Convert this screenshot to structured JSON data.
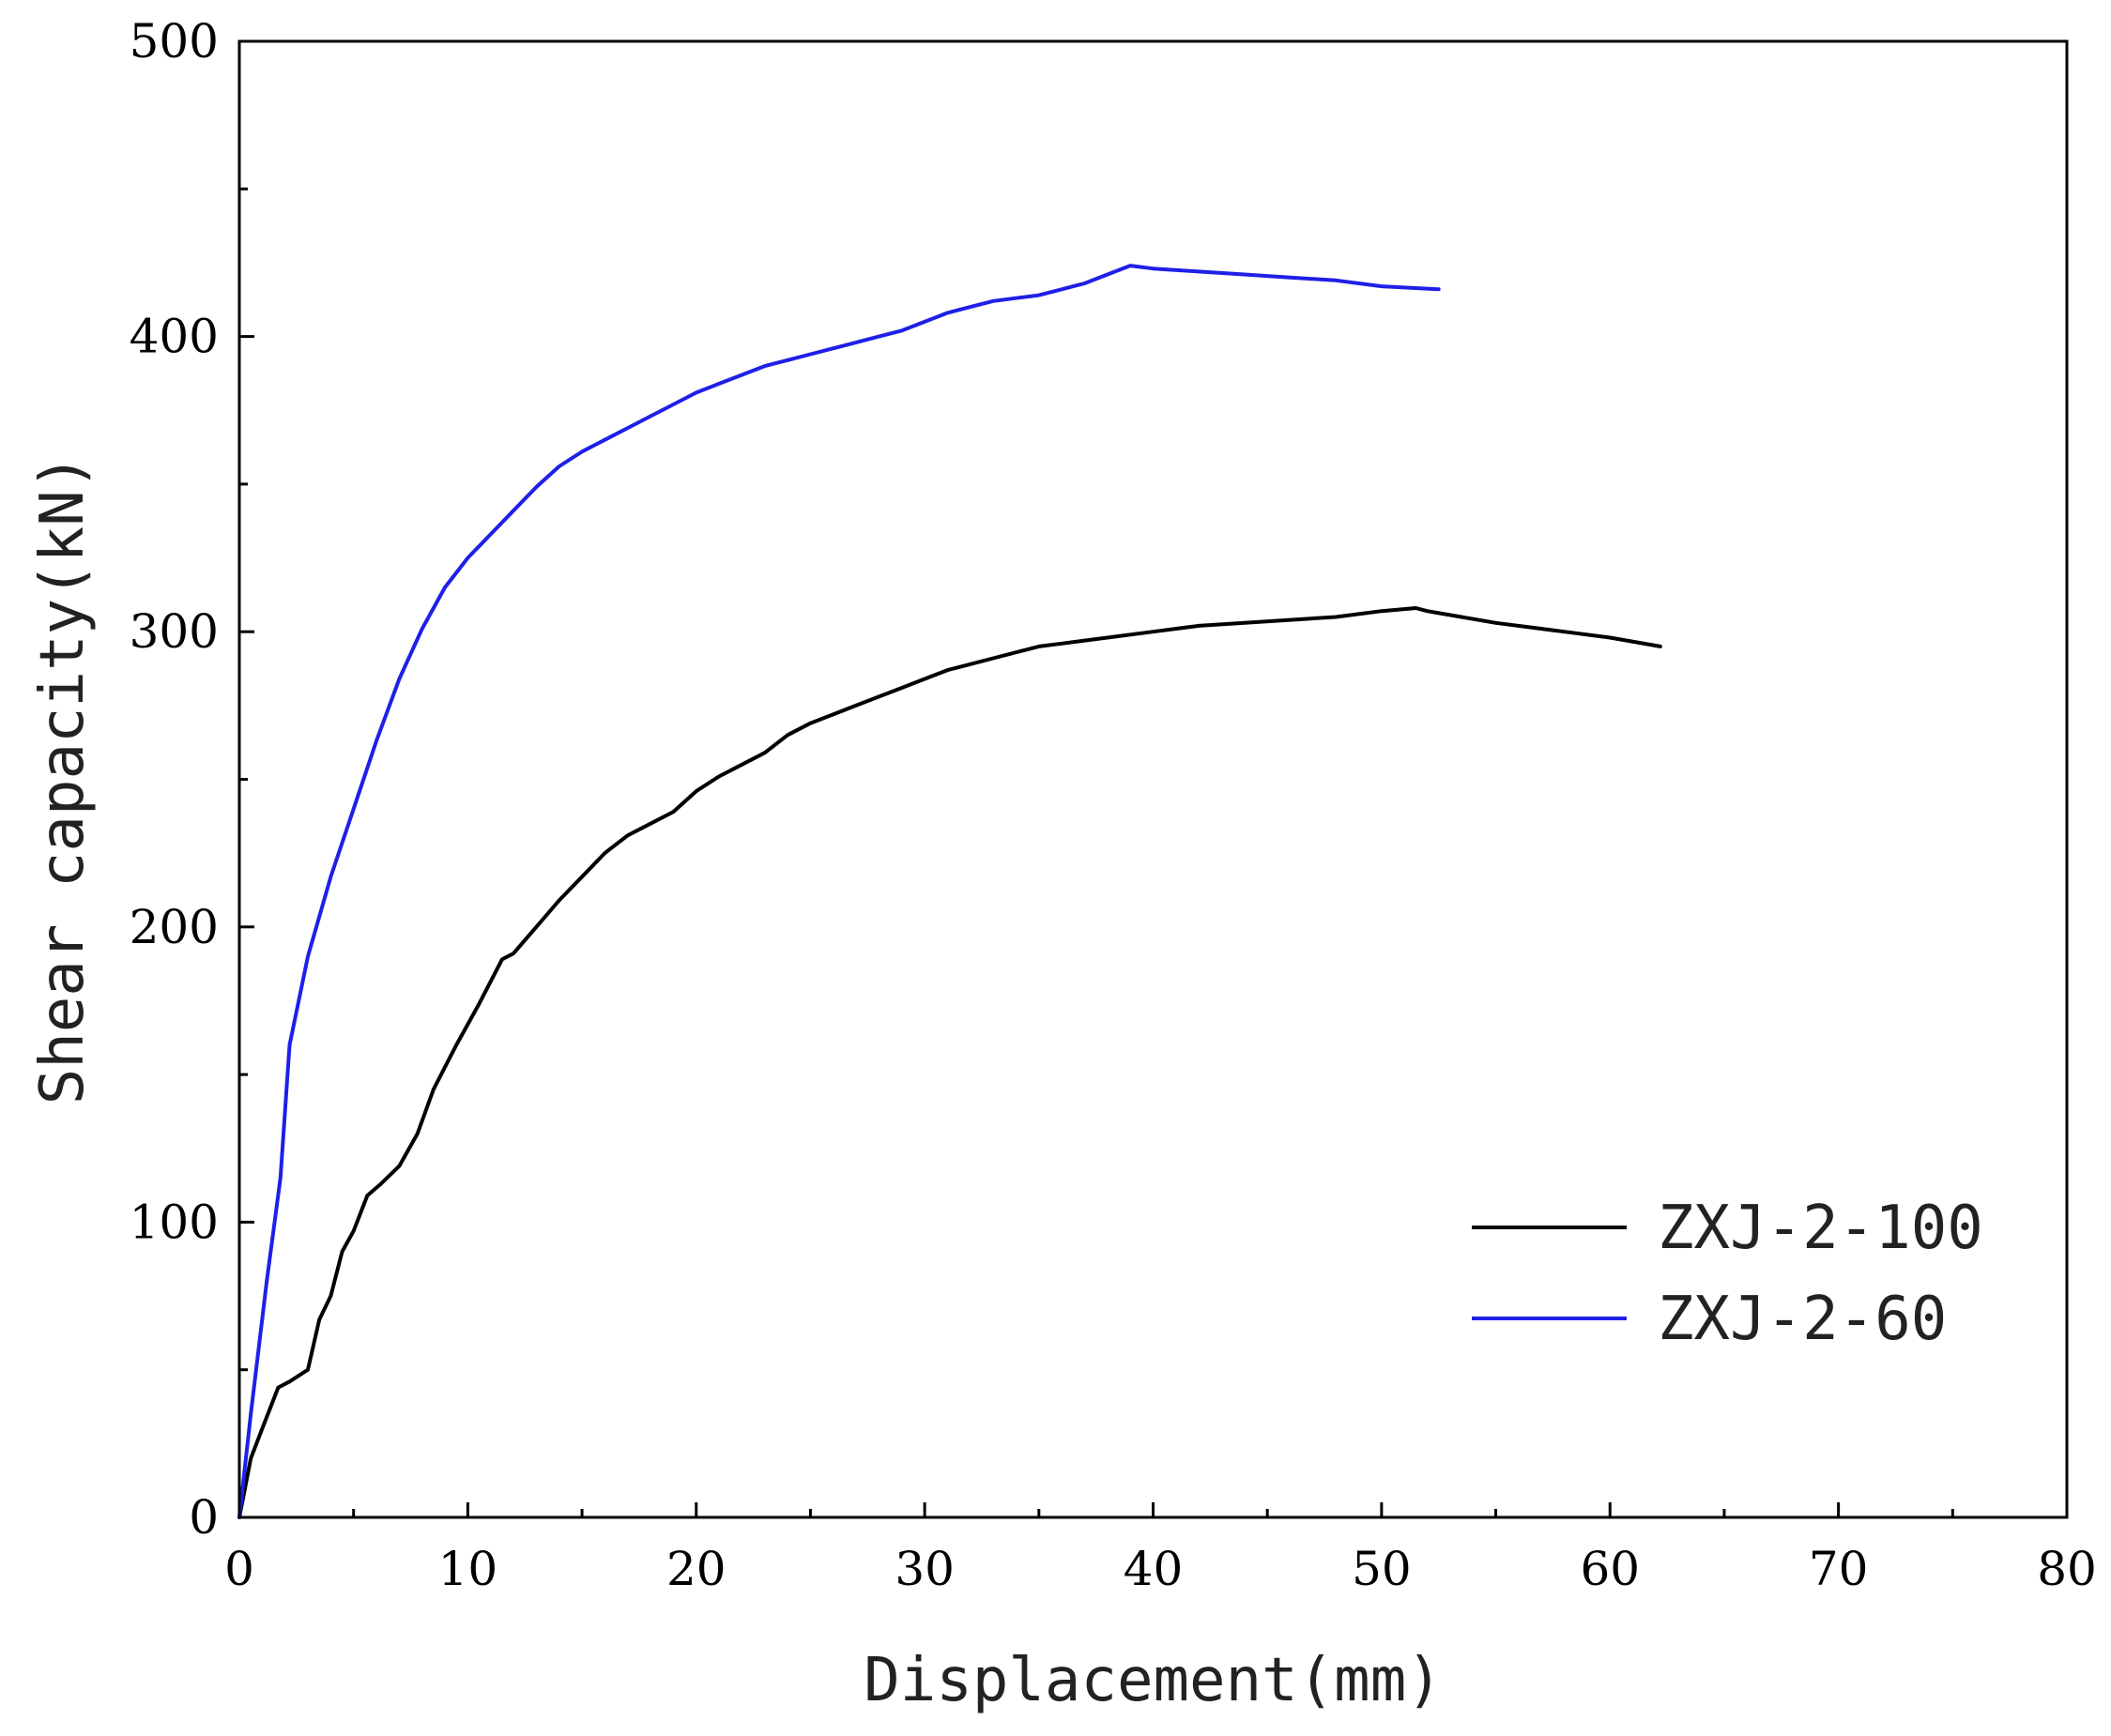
{
  "chart_data": {
    "type": "line",
    "title": "",
    "xlabel": "Displacement(mm)",
    "ylabel": "Shear capacity(kN)",
    "xlim": [
      0,
      80
    ],
    "ylim": [
      0,
      500
    ],
    "x_major_ticks": [
      0,
      10,
      20,
      30,
      40,
      50,
      60,
      70,
      80
    ],
    "x_tick_labels": [
      "0",
      "10",
      "20",
      "30",
      "40",
      "50",
      "60",
      "70",
      "80"
    ],
    "x_minor_ticks": [
      5,
      15,
      25,
      35,
      45,
      55,
      65,
      75
    ],
    "y_major_ticks": [
      0,
      100,
      200,
      300,
      400,
      500
    ],
    "y_tick_labels": [
      "0",
      "100",
      "200",
      "300",
      "400",
      "500"
    ],
    "y_minor_ticks": [
      50,
      150,
      250,
      350,
      450
    ],
    "grid": false,
    "legend_position": "bottom-right",
    "series": [
      {
        "name": "ZXJ-2-100",
        "color": "#000000",
        "points": [
          [
            0,
            0
          ],
          [
            0.5,
            20
          ],
          [
            1,
            30
          ],
          [
            1.7,
            44
          ],
          [
            2.2,
            46
          ],
          [
            3,
            50
          ],
          [
            3.5,
            67
          ],
          [
            4,
            75
          ],
          [
            4.5,
            90
          ],
          [
            5,
            97
          ],
          [
            5.6,
            109
          ],
          [
            6.2,
            113
          ],
          [
            7,
            119
          ],
          [
            7.8,
            130
          ],
          [
            8.5,
            145
          ],
          [
            9.5,
            160
          ],
          [
            10.5,
            174
          ],
          [
            11.5,
            189
          ],
          [
            12,
            191
          ],
          [
            13,
            200
          ],
          [
            14,
            209
          ],
          [
            15,
            217
          ],
          [
            16,
            225
          ],
          [
            17,
            231
          ],
          [
            18,
            235
          ],
          [
            19,
            239
          ],
          [
            20,
            246
          ],
          [
            21,
            251
          ],
          [
            22,
            255
          ],
          [
            23,
            259
          ],
          [
            24,
            265
          ],
          [
            25,
            269
          ],
          [
            26,
            272
          ],
          [
            27,
            275
          ],
          [
            28,
            278
          ],
          [
            29,
            281
          ],
          [
            30,
            284
          ],
          [
            31,
            287
          ],
          [
            32,
            289
          ],
          [
            33,
            291
          ],
          [
            34,
            293
          ],
          [
            35,
            295
          ],
          [
            36,
            296
          ],
          [
            37,
            297
          ],
          [
            38,
            298
          ],
          [
            40,
            300
          ],
          [
            42,
            302
          ],
          [
            44,
            303
          ],
          [
            46,
            304
          ],
          [
            48,
            305
          ],
          [
            50,
            307
          ],
          [
            51.5,
            308
          ],
          [
            52,
            307
          ],
          [
            55,
            303
          ],
          [
            58,
            300
          ],
          [
            60,
            298
          ],
          [
            62.2,
            295
          ]
        ]
      },
      {
        "name": "ZXJ-2-60",
        "color": "#1f1fe8",
        "points": [
          [
            0,
            0
          ],
          [
            0.5,
            35
          ],
          [
            1.2,
            80
          ],
          [
            1.8,
            115
          ],
          [
            2.2,
            160
          ],
          [
            3,
            190
          ],
          [
            4,
            217
          ],
          [
            5,
            240
          ],
          [
            6,
            263
          ],
          [
            7,
            284
          ],
          [
            8,
            301
          ],
          [
            9,
            315
          ],
          [
            10,
            325
          ],
          [
            11,
            333
          ],
          [
            12,
            341
          ],
          [
            13,
            349
          ],
          [
            14,
            356
          ],
          [
            15,
            361
          ],
          [
            16,
            365
          ],
          [
            17,
            369
          ],
          [
            18,
            373
          ],
          [
            19,
            377
          ],
          [
            20,
            381
          ],
          [
            21,
            384
          ],
          [
            22,
            387
          ],
          [
            23,
            390
          ],
          [
            24,
            392
          ],
          [
            25,
            394
          ],
          [
            26,
            396
          ],
          [
            27,
            398
          ],
          [
            28,
            400
          ],
          [
            29,
            402
          ],
          [
            30,
            405
          ],
          [
            31,
            408
          ],
          [
            32,
            410
          ],
          [
            33,
            412
          ],
          [
            34,
            413
          ],
          [
            35,
            414
          ],
          [
            36,
            416
          ],
          [
            37,
            418
          ],
          [
            38,
            421
          ],
          [
            39,
            424
          ],
          [
            40,
            423
          ],
          [
            42,
            422
          ],
          [
            44,
            421
          ],
          [
            46,
            420
          ],
          [
            48,
            419
          ],
          [
            50,
            417
          ],
          [
            52.5,
            416
          ]
        ]
      }
    ]
  }
}
